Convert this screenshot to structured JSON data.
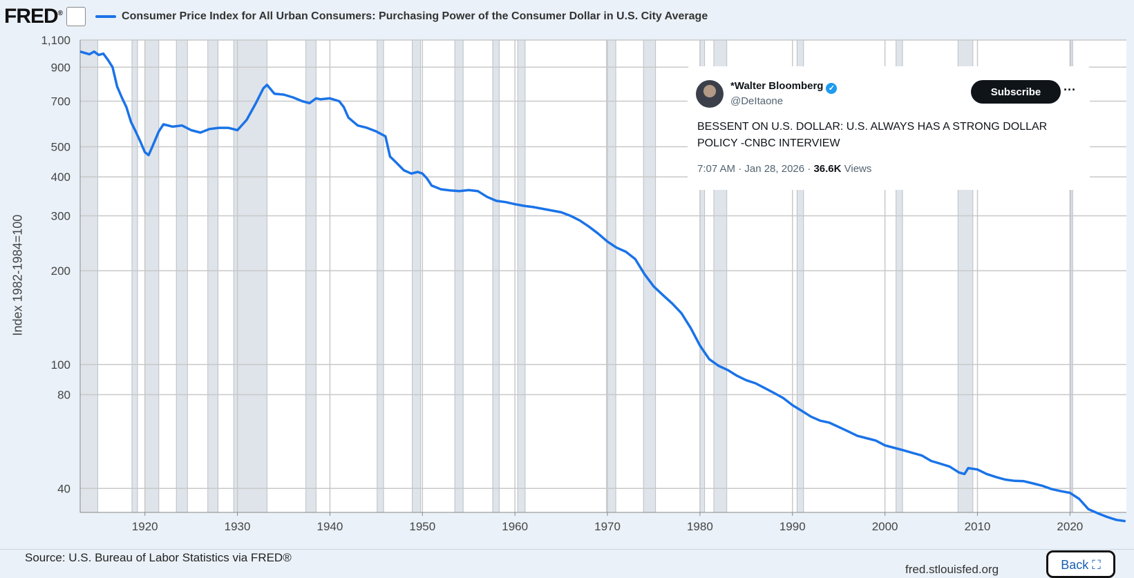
{
  "header": {
    "logo": "FRED",
    "logo_registered": "®",
    "series_title": "Consumer Price Index for All Urban Consumers: Purchasing Power of the Consumer Dollar in U.S. City Average"
  },
  "chart_data": {
    "type": "line",
    "scale": "log",
    "title": "Consumer Price Index for All Urban Consumers: Purchasing Power of the Consumer Dollar in U.S. City Average",
    "ylabel": "Index 1982-1984=100",
    "xlabel": "",
    "xlim": [
      1913,
      2026.1
    ],
    "ylim": [
      33.5,
      1100
    ],
    "y_ticks": [
      1100,
      900,
      700,
      500,
      400,
      300,
      200,
      100,
      80,
      40
    ],
    "y_tick_labels": [
      "1,100",
      "900",
      "700",
      "500",
      "400",
      "300",
      "200",
      "100",
      "80",
      "40"
    ],
    "x_ticks": [
      1920,
      1930,
      1940,
      1950,
      1960,
      1970,
      1980,
      1990,
      2000,
      2010,
      2020
    ],
    "x_tick_labels": [
      "1920",
      "1930",
      "1940",
      "1950",
      "1960",
      "1970",
      "1980",
      "1990",
      "2000",
      "2010",
      "2020"
    ],
    "recessions": [
      [
        1913.0,
        1914.9
      ],
      [
        1918.6,
        1919.2
      ],
      [
        1920.0,
        1921.5
      ],
      [
        1923.4,
        1924.6
      ],
      [
        1926.8,
        1927.9
      ],
      [
        1929.6,
        1933.2
      ],
      [
        1937.4,
        1938.5
      ],
      [
        1945.1,
        1945.8
      ],
      [
        1948.9,
        1949.8
      ],
      [
        1953.5,
        1954.4
      ],
      [
        1957.6,
        1958.3
      ],
      [
        1960.3,
        1961.1
      ],
      [
        1969.9,
        1970.9
      ],
      [
        1973.9,
        1975.2
      ],
      [
        1980.0,
        1980.5
      ],
      [
        1981.5,
        1982.9
      ],
      [
        1990.5,
        1991.2
      ],
      [
        2001.2,
        2001.9
      ],
      [
        2007.9,
        2009.5
      ],
      [
        2020.1,
        2020.3
      ]
    ],
    "series": [
      {
        "name": "Consumer Price Index for All Urban Consumers: Purchasing Power of the Consumer Dollar in U.S. City Average",
        "color": "#1a73e8",
        "x": [
          1913.0,
          1913.5,
          1914.0,
          1914.5,
          1915.0,
          1915.5,
          1916.0,
          1916.5,
          1917.0,
          1917.5,
          1918.0,
          1918.5,
          1919.0,
          1919.5,
          1920.0,
          1920.4,
          1920.8,
          1921.5,
          1922.0,
          1923.0,
          1924.0,
          1925.0,
          1926.0,
          1927.0,
          1928.0,
          1929.0,
          1930.0,
          1931.0,
          1932.0,
          1932.8,
          1933.2,
          1934.0,
          1935.0,
          1936.0,
          1937.0,
          1937.8,
          1938.5,
          1939.0,
          1940.0,
          1941.0,
          1941.5,
          1942.0,
          1943.0,
          1944.0,
          1945.0,
          1946.0,
          1946.5,
          1947.0,
          1948.0,
          1948.8,
          1949.5,
          1950.0,
          1950.5,
          1951.0,
          1952.0,
          1953.0,
          1954.0,
          1955.0,
          1956.0,
          1957.0,
          1958.0,
          1959.0,
          1960.0,
          1961.0,
          1962.0,
          1963.0,
          1964.0,
          1965.0,
          1966.0,
          1967.0,
          1968.0,
          1969.0,
          1970.0,
          1971.0,
          1972.0,
          1973.0,
          1974.0,
          1975.0,
          1976.0,
          1977.0,
          1978.0,
          1979.0,
          1980.0,
          1981.0,
          1982.0,
          1983.0,
          1984.0,
          1985.0,
          1986.0,
          1987.0,
          1988.0,
          1989.0,
          1990.0,
          1991.0,
          1992.0,
          1993.0,
          1994.0,
          1995.0,
          1996.0,
          1997.0,
          1998.0,
          1999.0,
          2000.0,
          2001.0,
          2002.0,
          2003.0,
          2004.0,
          2005.0,
          2006.0,
          2007.0,
          2008.0,
          2008.6,
          2009.0,
          2010.0,
          2011.0,
          2012.0,
          2013.0,
          2014.0,
          2015.0,
          2016.0,
          2017.0,
          2018.0,
          2019.0,
          2020.0,
          2021.0,
          2022.0,
          2023.0,
          2024.0,
          2025.0,
          2026.0
        ],
        "values": [
          1010,
          1000,
          990,
          1010,
          985,
          995,
          950,
          900,
          780,
          720,
          670,
          600,
          560,
          520,
          480,
          470,
          500,
          560,
          590,
          580,
          585,
          565,
          555,
          570,
          575,
          575,
          565,
          610,
          690,
          770,
          790,
          740,
          735,
          720,
          700,
          690,
          715,
          710,
          715,
          700,
          670,
          620,
          585,
          575,
          560,
          540,
          465,
          450,
          420,
          410,
          415,
          410,
          395,
          375,
          365,
          362,
          360,
          363,
          360,
          345,
          335,
          332,
          327,
          323,
          320,
          316,
          312,
          308,
          300,
          290,
          277,
          263,
          248,
          237,
          230,
          218,
          195,
          178,
          167,
          157,
          146,
          131,
          115,
          104,
          99,
          96,
          92,
          89,
          87,
          84,
          81,
          78,
          74,
          71,
          68,
          66,
          65,
          63,
          61,
          59,
          58,
          57,
          55,
          54,
          53,
          52,
          51,
          49,
          48,
          47,
          45,
          44.5,
          46.5,
          46,
          44.5,
          43.5,
          42.7,
          42.3,
          42.2,
          41.5,
          40.8,
          39.8,
          39.2,
          38.7,
          37,
          34.3,
          33.3,
          32.4,
          31.7,
          31.4
        ]
      }
    ]
  },
  "tweet": {
    "name": "*Walter Bloomberg",
    "handle": "@DeItaone",
    "subscribe_label": "Subscribe",
    "text": "BESSENT ON U.S. DOLLAR: U.S. ALWAYS HAS A STRONG DOLLAR POLICY -CNBC INTERVIEW",
    "time": "7:07 AM · Jan 28, 2026 · ",
    "views_count": "36.6K",
    "views_label": " Views"
  },
  "footer": {
    "source": "Source: U.S. Bureau of Labor Statistics via FRED®",
    "site": "fred.stlouisfed.org",
    "back_label": "Back ⛶"
  }
}
